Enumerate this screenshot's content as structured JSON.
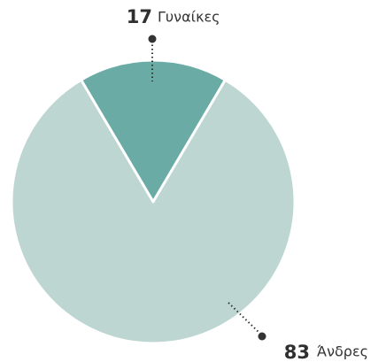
{
  "chart_data": {
    "type": "pie",
    "categories": [
      "Γυναίκες",
      "Άνδρες"
    ],
    "values": [
      17,
      83
    ],
    "colors": [
      "#6aaba6",
      "#bdd6d2"
    ]
  }
}
